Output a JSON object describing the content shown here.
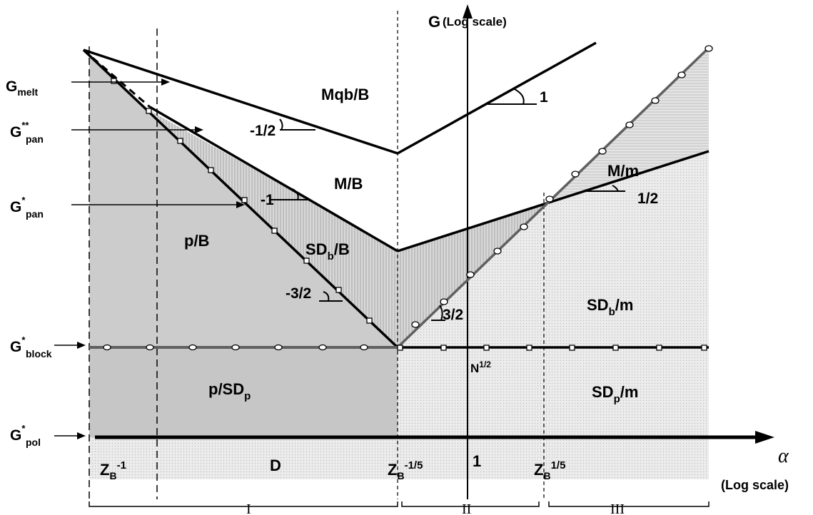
{
  "axes": {
    "y_label": "G",
    "y_scale_note": "(Log scale)",
    "x_label": "α",
    "x_scale_note": "(Log scale)"
  },
  "regions": {
    "mqb_b": "Mqb/B",
    "m_b": "M/B",
    "p_b": "p/B",
    "sdb_b": {
      "main": "SD",
      "sub": "b",
      "tail": "/B"
    },
    "m_m": "M/m",
    "sdb_m": {
      "main": "SD",
      "sub": "b",
      "tail": "/m"
    },
    "p_sdp": {
      "main": "p/SD",
      "sub": "p"
    },
    "sdp_m": {
      "main": "SD",
      "sub": "p",
      "tail": "/m"
    },
    "n_half": {
      "main": "N",
      "sup": "1/2"
    },
    "d": "D"
  },
  "slopes": {
    "s_minus_half": "-1/2",
    "s_one": "1",
    "s_minus_one": "-1",
    "s_half": "1/2",
    "s_minus_three_half": "-3/2",
    "s_three_half": "3/2"
  },
  "g_labels": {
    "melt": {
      "main": "G",
      "sub": "melt",
      "sup": ""
    },
    "pan2": {
      "main": "G",
      "sub": "pan",
      "sup": "**"
    },
    "pan1": {
      "main": "G",
      "sub": "pan",
      "sup": "*"
    },
    "block": {
      "main": "G",
      "sub": "block",
      "sup": "*"
    },
    "pol": {
      "main": "G",
      "sub": "pol",
      "sup": "*"
    }
  },
  "x_ticks": {
    "zb_m1": {
      "main": "Z",
      "sub": "B",
      "sup": "-1"
    },
    "zb_m15": {
      "main": "Z",
      "sub": "B",
      "sup": "-1/5"
    },
    "one": "1",
    "zb_15": {
      "main": "Z",
      "sub": "B",
      "sup": "1/5"
    }
  },
  "regimes": {
    "r1": "I",
    "r2": "II",
    "r3": "III"
  },
  "colors": {
    "line": "#000000",
    "marked_line": "#555555",
    "fill_dark": "#c8c8c8",
    "fill_mid": "#d4d4d4",
    "fill_light": "#e6e6e6"
  }
}
